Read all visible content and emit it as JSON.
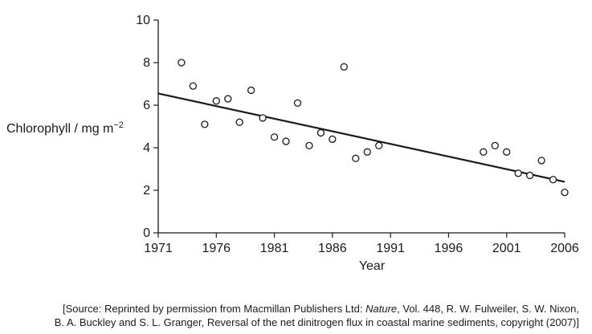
{
  "chart_data": {
    "type": "scatter",
    "title": "",
    "xlabel": "Year",
    "ylabel": "Chlorophyll / mg m",
    "ylabel_sup": "−2",
    "xlim": [
      1971,
      2006
    ],
    "ylim": [
      0,
      10
    ],
    "x_ticks": [
      1971,
      1976,
      1981,
      1986,
      1991,
      1996,
      2001,
      2006
    ],
    "y_ticks": [
      0,
      2,
      4,
      6,
      8,
      10
    ],
    "grid": false,
    "points": [
      {
        "x": 1973,
        "y": 8.0
      },
      {
        "x": 1974,
        "y": 6.9
      },
      {
        "x": 1975,
        "y": 5.1
      },
      {
        "x": 1976,
        "y": 6.2
      },
      {
        "x": 1977,
        "y": 6.3
      },
      {
        "x": 1978,
        "y": 5.2
      },
      {
        "x": 1979,
        "y": 6.7
      },
      {
        "x": 1980,
        "y": 5.4
      },
      {
        "x": 1981,
        "y": 4.5
      },
      {
        "x": 1982,
        "y": 4.3
      },
      {
        "x": 1983,
        "y": 6.1
      },
      {
        "x": 1984,
        "y": 4.1
      },
      {
        "x": 1985,
        "y": 4.7
      },
      {
        "x": 1986,
        "y": 4.4
      },
      {
        "x": 1987,
        "y": 7.8
      },
      {
        "x": 1988,
        "y": 3.5
      },
      {
        "x": 1989,
        "y": 3.8
      },
      {
        "x": 1990,
        "y": 4.1
      },
      {
        "x": 1999,
        "y": 3.8
      },
      {
        "x": 2000,
        "y": 4.1
      },
      {
        "x": 2001,
        "y": 3.8
      },
      {
        "x": 2002,
        "y": 2.8
      },
      {
        "x": 2003,
        "y": 2.7
      },
      {
        "x": 2004,
        "y": 3.4
      },
      {
        "x": 2005,
        "y": 2.5
      },
      {
        "x": 2006,
        "y": 1.9
      }
    ],
    "trend_line": {
      "x": [
        1971,
        2006
      ],
      "y": [
        6.55,
        2.4
      ]
    }
  },
  "source": {
    "line1_pre": "[Source: Reprinted by permission from Macmillan Publishers Ltd: ",
    "line1_italic": "Nature",
    "line1_post": ", Vol. 448, R. W. Fulweiler, S. W. Nixon,",
    "line2": "B. A. Buckley and S. L. Granger, Reversal of the net dinitrogen flux in coastal marine sediments, copyright (2007)]"
  }
}
